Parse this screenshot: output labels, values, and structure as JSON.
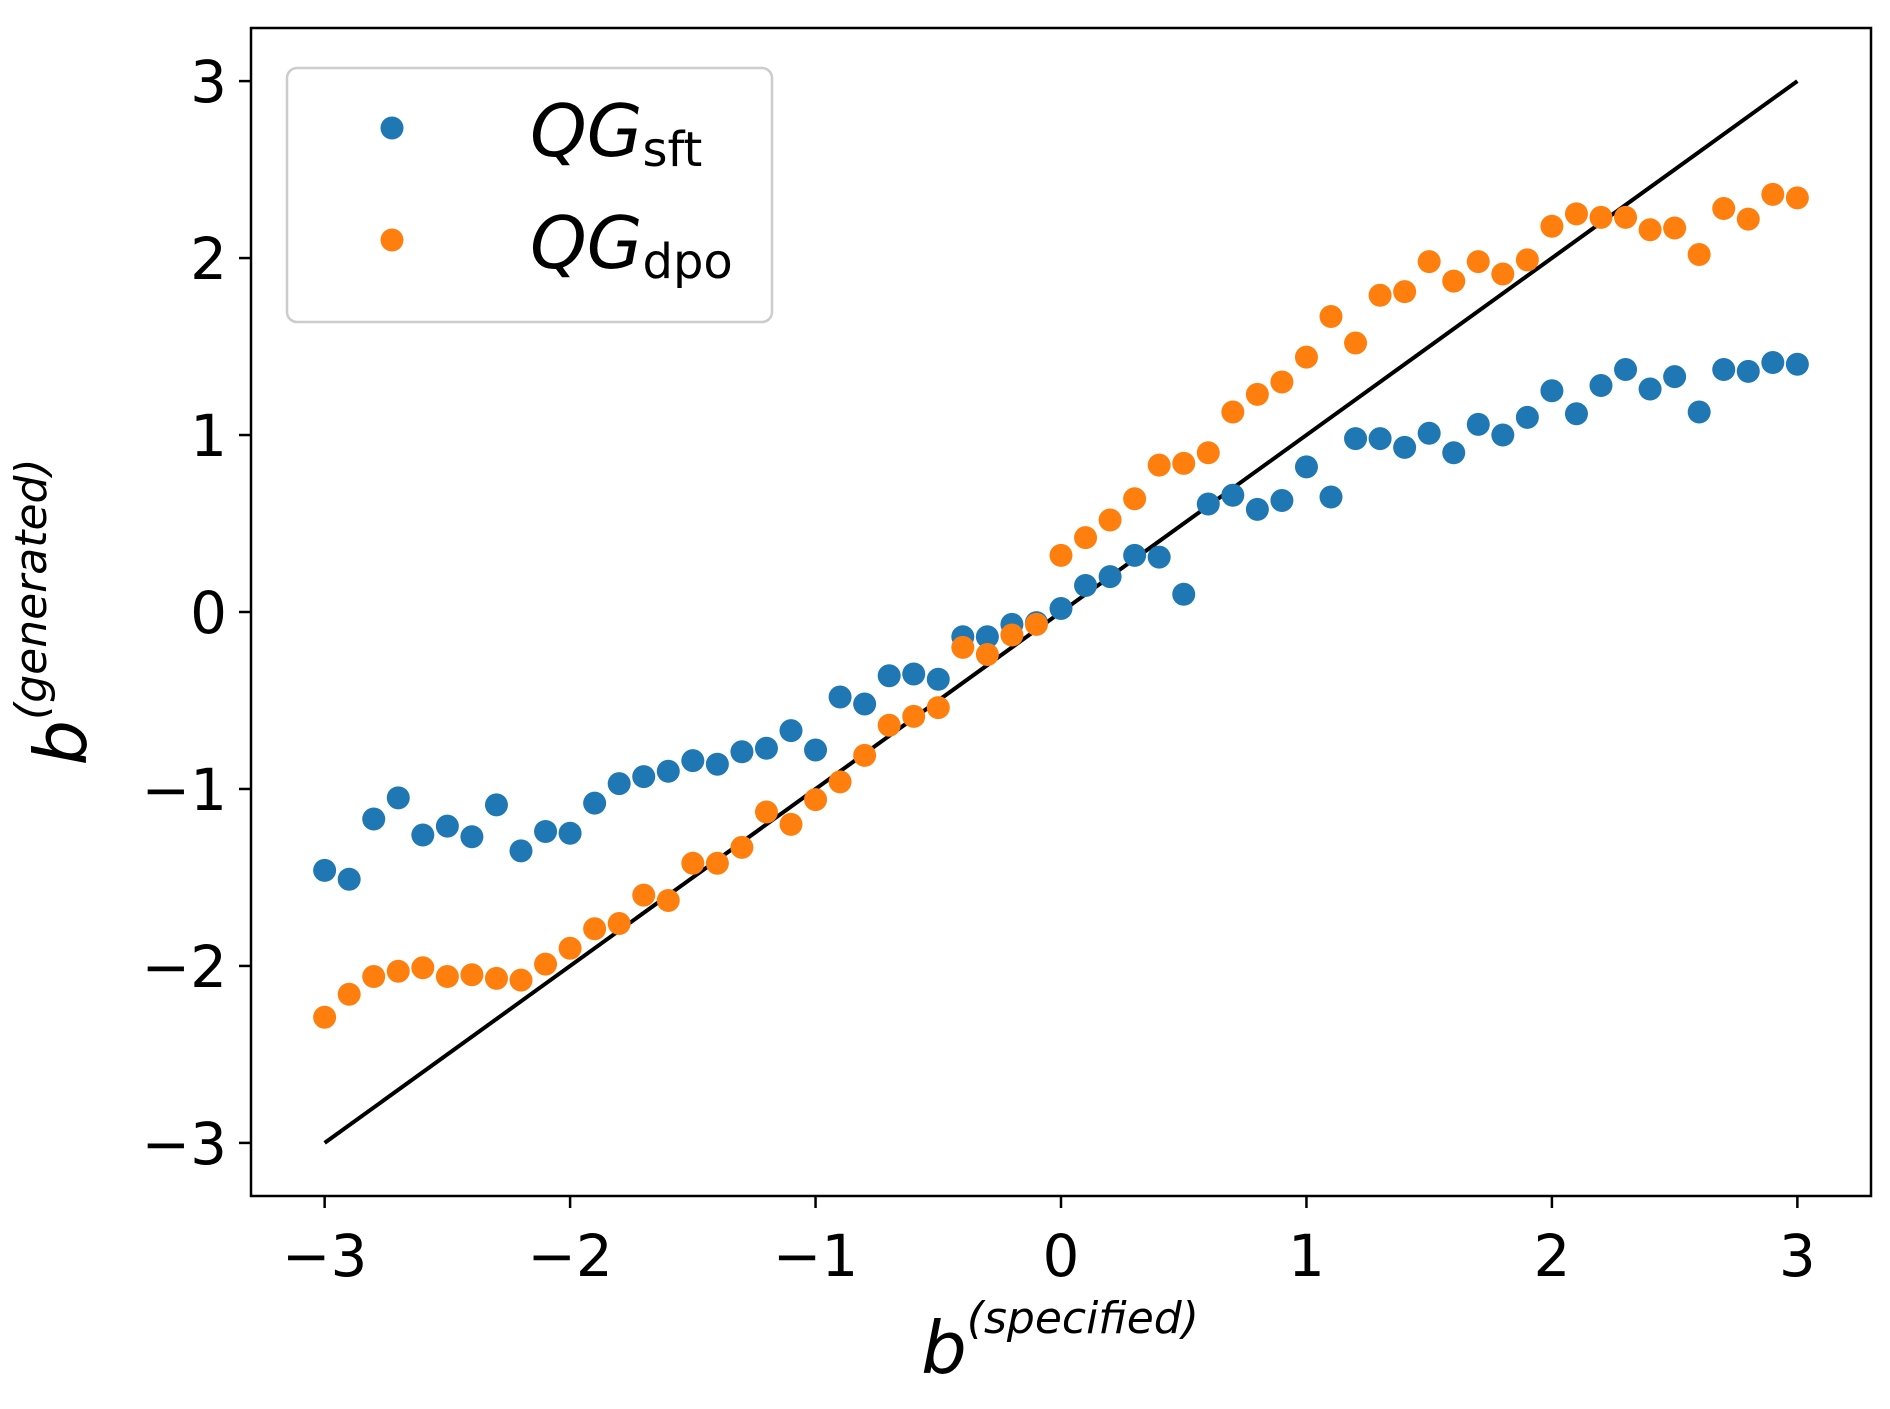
{
  "chart_data": {
    "type": "scatter",
    "title": "",
    "xlabel": {
      "base": "b",
      "superscript": "(specified)"
    },
    "ylabel": {
      "base": "b",
      "superscript": "(generated)"
    },
    "xlim": [
      -3.3,
      3.3
    ],
    "ylim": [
      -3.3,
      3.3
    ],
    "xticks": [
      -3,
      -2,
      -1,
      0,
      1,
      2,
      3
    ],
    "yticks": [
      -3,
      -2,
      -1,
      0,
      1,
      2,
      3
    ],
    "xtick_labels": [
      "−3",
      "−2",
      "−1",
      "0",
      "1",
      "2",
      "3"
    ],
    "ytick_labels": [
      "−3",
      "−2",
      "−1",
      "0",
      "1",
      "2",
      "3"
    ],
    "grid": false,
    "legend_position": "top-left",
    "reference_line": {
      "x": [
        -3,
        3
      ],
      "y": [
        -3,
        3
      ],
      "color": "#000000"
    },
    "x": [
      -3.0,
      -2.9,
      -2.8,
      -2.7,
      -2.6,
      -2.5,
      -2.4,
      -2.3,
      -2.2,
      -2.1,
      -2.0,
      -1.9,
      -1.8,
      -1.7,
      -1.6,
      -1.5,
      -1.4,
      -1.3,
      -1.2,
      -1.1,
      -1.0,
      -0.9,
      -0.8,
      -0.7,
      -0.6,
      -0.5,
      -0.4,
      -0.3,
      -0.2,
      -0.1,
      0.0,
      0.1,
      0.2,
      0.3,
      0.4,
      0.5,
      0.6,
      0.7,
      0.8,
      0.9,
      1.0,
      1.1,
      1.2,
      1.3,
      1.4,
      1.5,
      1.6,
      1.7,
      1.8,
      1.9,
      2.0,
      2.1,
      2.2,
      2.3,
      2.4,
      2.5,
      2.6,
      2.7,
      2.8,
      2.9,
      3.0
    ],
    "series": [
      {
        "name": "QG",
        "subscript": "sft",
        "color": "#1f77b4",
        "values": [
          -1.46,
          -1.51,
          -1.17,
          -1.05,
          -1.26,
          -1.21,
          -1.27,
          -1.09,
          -1.35,
          -1.24,
          -1.25,
          -1.08,
          -0.97,
          -0.93,
          -0.9,
          -0.84,
          -0.86,
          -0.79,
          -0.77,
          -0.67,
          -0.78,
          -0.48,
          -0.52,
          -0.36,
          -0.35,
          -0.38,
          -0.14,
          -0.14,
          -0.07,
          -0.06,
          0.02,
          0.15,
          0.2,
          0.32,
          0.31,
          0.1,
          0.61,
          0.66,
          0.58,
          0.63,
          0.82,
          0.65,
          0.98,
          0.98,
          0.93,
          1.01,
          0.9,
          1.06,
          1.0,
          1.1,
          1.25,
          1.12,
          1.28,
          1.37,
          1.26,
          1.33,
          1.13,
          1.37,
          1.36,
          1.41,
          1.4
        ]
      },
      {
        "name": "QG",
        "subscript": "dpo",
        "color": "#ff7f0e",
        "values": [
          -2.29,
          -2.16,
          -2.06,
          -2.03,
          -2.01,
          -2.06,
          -2.05,
          -2.07,
          -2.08,
          -1.99,
          -1.9,
          -1.79,
          -1.76,
          -1.6,
          -1.63,
          -1.42,
          -1.42,
          -1.33,
          -1.13,
          -1.2,
          -1.06,
          -0.96,
          -0.81,
          -0.64,
          -0.59,
          -0.54,
          -0.2,
          -0.24,
          -0.13,
          -0.07,
          0.32,
          0.42,
          0.52,
          0.64,
          0.83,
          0.84,
          0.9,
          1.13,
          1.23,
          1.3,
          1.44,
          1.67,
          1.52,
          1.79,
          1.81,
          1.98,
          1.87,
          1.98,
          1.91,
          1.99,
          2.18,
          2.25,
          2.23,
          2.23,
          2.16,
          2.17,
          2.02,
          2.28,
          2.22,
          2.36,
          2.34
        ]
      }
    ]
  }
}
